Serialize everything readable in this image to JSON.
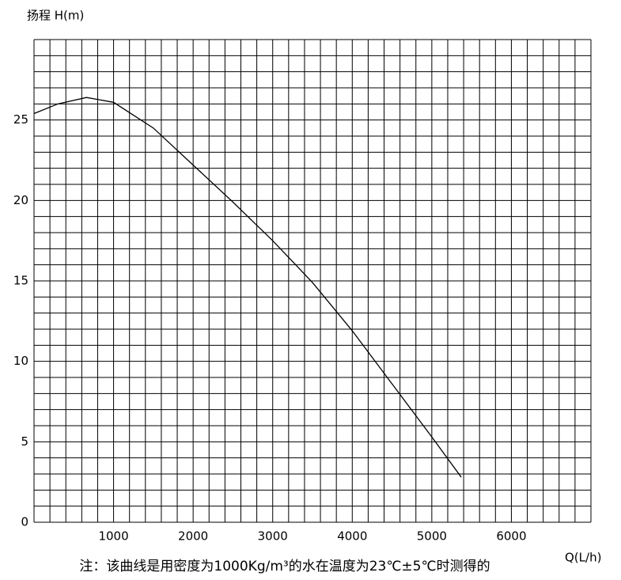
{
  "chart_data": {
    "type": "line",
    "y_label": "扬程 H(m)",
    "x_label": "Q(L/h)",
    "note": "注：该曲线是用密度为1000Kg/m³的水在温度为23℃±5℃时测得的",
    "x": [
      0,
      300,
      660,
      1000,
      1500,
      2000,
      2500,
      3000,
      3500,
      4000,
      4500,
      5000,
      5370
    ],
    "series": [
      {
        "color": "#000000",
        "values": [
          25.4,
          26.0,
          26.4,
          26.1,
          24.5,
          22.2,
          19.9,
          17.5,
          14.9,
          11.9,
          8.6,
          5.3,
          2.8
        ]
      }
    ],
    "xlim": [
      0,
      7000
    ],
    "ylim": [
      0,
      30
    ],
    "xticks": [
      1000,
      2000,
      3000,
      4000,
      5000,
      6000
    ],
    "yticks": [
      0,
      5,
      10,
      15,
      20,
      25
    ],
    "xgrid": [
      0,
      200,
      400,
      600,
      800,
      1000,
      1200,
      1400,
      1600,
      1800,
      2000,
      2200,
      2400,
      2600,
      2800,
      3000,
      3200,
      3400,
      3600,
      3800,
      4000,
      4200,
      4400,
      4600,
      4800,
      5000,
      5200,
      5400,
      5600,
      5800,
      6000,
      6200,
      6400,
      6600,
      6800,
      7000
    ],
    "ygrid": [
      0,
      1,
      2,
      3,
      4,
      5,
      6,
      7,
      8,
      9,
      10,
      11,
      12,
      13,
      14,
      15,
      16,
      17,
      18,
      19,
      20,
      21,
      22,
      23,
      24,
      25,
      26,
      27,
      28,
      29,
      30
    ],
    "grid": true
  }
}
